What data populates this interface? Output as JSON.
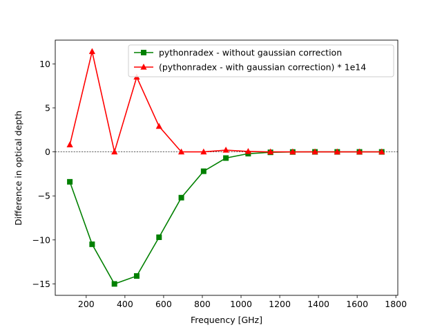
{
  "chart_data": {
    "type": "line",
    "title": "",
    "xlabel": "Frequency [GHz]",
    "ylabel": "Difference in optical depth",
    "xlim": [
      40,
      1810
    ],
    "ylim": [
      -16.3,
      12.7
    ],
    "xticks": [
      200,
      400,
      600,
      800,
      1000,
      1200,
      1400,
      1600,
      1800
    ],
    "yticks": [
      -15,
      -10,
      -5,
      0,
      5,
      10
    ],
    "reference_line": {
      "y": 0,
      "style": "dashed",
      "color": "#000000"
    },
    "grid": false,
    "legend_position": "upper right",
    "x": [
      115.3,
      230.5,
      345.8,
      461.0,
      576.3,
      691.5,
      806.7,
      921.8,
      1036.9,
      1152.0,
      1267.0,
      1382.0,
      1497.0,
      1612.0,
      1727.0
    ],
    "series": [
      {
        "name": "pythonradex - without gaussian correction",
        "color": "#008000",
        "marker": "square",
        "values": [
          -3.4,
          -10.5,
          -15.0,
          -14.1,
          -9.7,
          -5.2,
          -2.2,
          -0.7,
          -0.2,
          -0.05,
          -0.01,
          0.0,
          0.0,
          0.0,
          0.0
        ]
      },
      {
        "name": "(pythonradex - with gaussian correction) * 1e14",
        "color": "#ff0000",
        "marker": "triangle",
        "values": [
          0.8,
          11.4,
          0.0,
          8.5,
          2.9,
          0.0,
          0.0,
          0.2,
          0.05,
          0.0,
          0.0,
          0.0,
          0.0,
          0.0,
          0.0
        ]
      }
    ]
  }
}
